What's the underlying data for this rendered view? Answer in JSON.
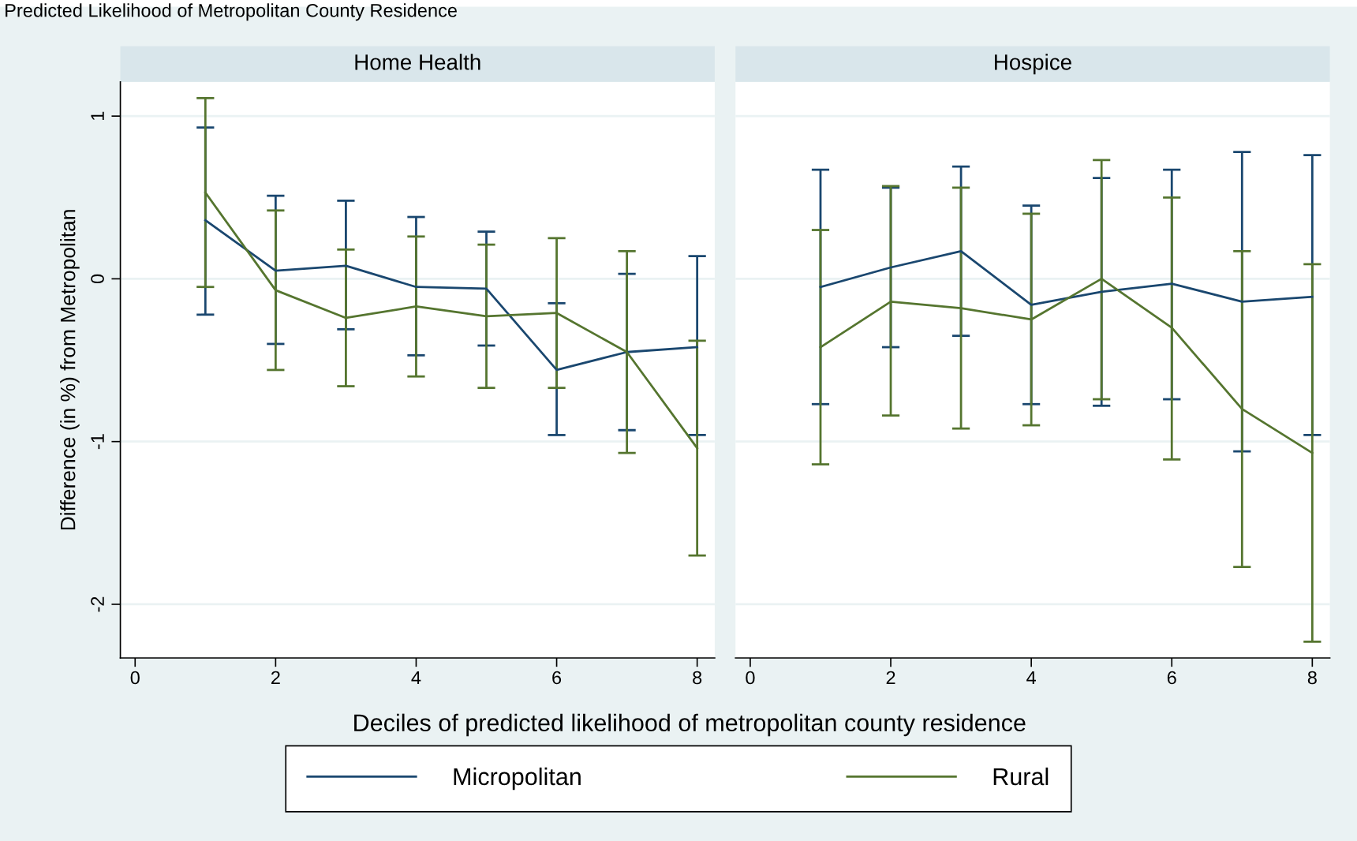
{
  "chart_data": [
    {
      "type": "line",
      "title": "Home Health",
      "xlabel": "Deciles of predicted likelihood of metropolitan county residence",
      "ylabel": "Difference (in %) from Metropolitan",
      "annotations": [
        "Predicted Likelihood of Metropolitan County Residence"
      ],
      "x": [
        1,
        2,
        3,
        4,
        5,
        6,
        7,
        8
      ],
      "xlim": [
        -0.21,
        8.25
      ],
      "xticks": [
        0,
        2,
        4,
        6,
        8
      ],
      "ylim": [
        -2.33,
        1.21
      ],
      "yticks": [
        -2,
        -1,
        0,
        1
      ],
      "grid": "y",
      "legend": "bottom",
      "marker": "none",
      "line_style": "solid",
      "series": [
        {
          "name": "Micropolitan",
          "color": "#1a476f",
          "values": [
            0.36,
            0.05,
            0.08,
            -0.05,
            -0.06,
            -0.56,
            -0.45,
            -0.42
          ],
          "errors": [
            [
              -0.22,
              0.93
            ],
            [
              -0.4,
              0.51
            ],
            [
              -0.31,
              0.48
            ],
            [
              -0.47,
              0.38
            ],
            [
              -0.41,
              0.29
            ],
            [
              -0.96,
              -0.15
            ],
            [
              -0.93,
              0.03
            ],
            [
              -0.96,
              0.14
            ]
          ]
        },
        {
          "name": "Rural",
          "color": "#55752f",
          "values": [
            0.53,
            -0.07,
            -0.24,
            -0.17,
            -0.23,
            -0.21,
            -0.45,
            -1.04
          ],
          "errors": [
            [
              -0.05,
              1.11
            ],
            [
              -0.56,
              0.42
            ],
            [
              -0.66,
              0.18
            ],
            [
              -0.6,
              0.26
            ],
            [
              -0.67,
              0.21
            ],
            [
              -0.67,
              0.25
            ],
            [
              -1.07,
              0.17
            ],
            [
              -1.7,
              -0.38
            ]
          ]
        }
      ]
    },
    {
      "type": "line",
      "title": "Hospice",
      "x": [
        1,
        2,
        3,
        4,
        5,
        6,
        7,
        8
      ],
      "xlim": [
        -0.21,
        8.25
      ],
      "xticks": [
        0,
        2,
        4,
        6,
        8
      ],
      "ylim": [
        -2.33,
        1.21
      ],
      "yticks": [
        -2,
        -1,
        0,
        1
      ],
      "grid": "y",
      "tick_labels": "x",
      "marker": "none",
      "line_style": "solid",
      "series": [
        {
          "color": "#1a476f",
          "values": [
            -0.05,
            0.07,
            0.17,
            -0.16,
            -0.08,
            -0.03,
            -0.14,
            -0.11
          ],
          "errors": [
            [
              -0.77,
              0.67
            ],
            [
              -0.42,
              0.56
            ],
            [
              -0.35,
              0.69
            ],
            [
              -0.77,
              0.45
            ],
            [
              -0.78,
              0.62
            ],
            [
              -0.74,
              0.67
            ],
            [
              -1.06,
              0.78
            ],
            [
              -0.96,
              0.76
            ]
          ]
        },
        {
          "color": "#55752f",
          "values": [
            -0.42,
            -0.14,
            -0.18,
            -0.25,
            0.0,
            -0.3,
            -0.8,
            -1.07
          ],
          "errors": [
            [
              -1.14,
              0.3
            ],
            [
              -0.84,
              0.57
            ],
            [
              -0.92,
              0.56
            ],
            [
              -0.9,
              0.4
            ],
            [
              -0.74,
              0.73
            ],
            [
              -1.11,
              0.5
            ],
            [
              -1.77,
              0.17
            ],
            [
              -2.23,
              0.09
            ]
          ]
        }
      ]
    }
  ]
}
